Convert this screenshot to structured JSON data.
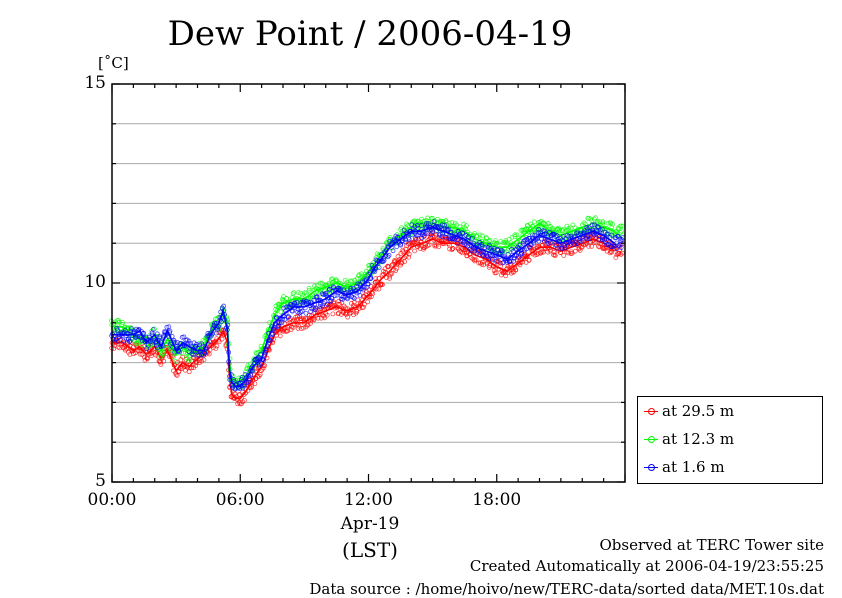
{
  "chart_data": {
    "type": "line",
    "title": "Dew Point / 2006-04-19",
    "ylabel": "[˚C]",
    "xlabel_date": "Apr-19",
    "xlabel_tz": "(LST)",
    "ylim": [
      5,
      15
    ],
    "yticks": [
      "5",
      "10",
      "15"
    ],
    "xlim_hours": [
      0,
      24
    ],
    "xticks": [
      "00:00",
      "06:00",
      "12:00",
      "18:00"
    ],
    "grid": true,
    "legend_position": "right-bottom",
    "series": [
      {
        "name": "at 29.5 m",
        "color": "#ff0000",
        "hours": [
          0,
          0.5,
          1,
          1.3,
          1.6,
          2,
          2.3,
          2.6,
          3,
          3.3,
          3.6,
          4,
          4.3,
          4.6,
          5,
          5.2,
          5.4,
          5.5,
          5.6,
          5.8,
          6,
          6.3,
          6.6,
          7,
          7.3,
          7.6,
          8,
          8.5,
          9,
          9.5,
          10,
          10.5,
          11,
          11.5,
          12,
          12.3,
          12.6,
          13,
          13.5,
          14,
          14.5,
          15,
          15.5,
          16,
          16.5,
          17,
          17.5,
          18,
          18.5,
          19,
          19.5,
          20,
          20.5,
          21,
          21.5,
          22,
          22.5,
          23,
          23.5,
          24
        ],
        "values": [
          8.5,
          8.5,
          8.3,
          8.4,
          8.2,
          8.4,
          8.1,
          8.3,
          7.8,
          8.0,
          7.9,
          8.1,
          8.2,
          8.4,
          8.6,
          8.8,
          8.5,
          7.6,
          7.2,
          7.1,
          7.1,
          7.3,
          7.6,
          7.9,
          8.3,
          8.7,
          8.9,
          9.0,
          9.0,
          9.2,
          9.3,
          9.4,
          9.3,
          9.4,
          9.7,
          9.9,
          10.1,
          10.3,
          10.6,
          10.9,
          11.0,
          11.1,
          11.0,
          11.0,
          10.9,
          10.7,
          10.6,
          10.4,
          10.3,
          10.5,
          10.7,
          10.9,
          10.9,
          10.8,
          10.9,
          11.0,
          11.1,
          11.0,
          10.8,
          10.9
        ]
      },
      {
        "name": "at 12.3 m",
        "color": "#00ff00",
        "hours": [
          0,
          0.5,
          1,
          1.3,
          1.6,
          2,
          2.3,
          2.6,
          3,
          3.3,
          3.6,
          4,
          4.3,
          4.6,
          5,
          5.2,
          5.4,
          5.5,
          5.6,
          5.8,
          6,
          6.3,
          6.6,
          7,
          7.3,
          7.6,
          8,
          8.5,
          9,
          9.5,
          10,
          10.5,
          11,
          11.5,
          12,
          12.3,
          12.6,
          13,
          13.5,
          14,
          14.5,
          15,
          15.5,
          16,
          16.5,
          17,
          17.5,
          18,
          18.5,
          19,
          19.5,
          20,
          20.5,
          21,
          21.5,
          22,
          22.5,
          23,
          23.5,
          24
        ],
        "values": [
          8.9,
          8.9,
          8.7,
          8.6,
          8.5,
          8.7,
          8.3,
          8.6,
          8.2,
          8.4,
          8.2,
          8.3,
          8.4,
          8.8,
          9.0,
          9.3,
          9.0,
          8.0,
          7.6,
          7.5,
          7.5,
          7.7,
          8.0,
          8.3,
          8.8,
          9.2,
          9.5,
          9.6,
          9.6,
          9.8,
          9.9,
          10.0,
          9.9,
          10.0,
          10.3,
          10.5,
          10.7,
          11.0,
          11.2,
          11.4,
          11.5,
          11.5,
          11.4,
          11.4,
          11.3,
          11.1,
          11.0,
          10.9,
          10.9,
          11.1,
          11.3,
          11.5,
          11.3,
          11.2,
          11.3,
          11.4,
          11.5,
          11.4,
          11.3,
          11.3
        ]
      },
      {
        "name": "at 1.6 m",
        "color": "#0000ff",
        "hours": [
          0,
          0.5,
          1,
          1.3,
          1.6,
          2,
          2.3,
          2.6,
          3,
          3.3,
          3.6,
          4,
          4.3,
          4.6,
          5,
          5.2,
          5.4,
          5.5,
          5.6,
          5.8,
          6,
          6.3,
          6.6,
          7,
          7.3,
          7.6,
          8,
          8.5,
          9,
          9.5,
          10,
          10.5,
          11,
          11.5,
          12,
          12.3,
          12.6,
          13,
          13.5,
          14,
          14.5,
          15,
          15.5,
          16,
          16.5,
          17,
          17.5,
          18,
          18.5,
          19,
          19.5,
          20,
          20.5,
          21,
          21.5,
          22,
          22.5,
          23,
          23.5,
          24
        ],
        "values": [
          8.7,
          8.7,
          8.7,
          8.8,
          8.5,
          8.7,
          8.4,
          8.8,
          8.3,
          8.5,
          8.4,
          8.3,
          8.3,
          8.7,
          9.0,
          9.3,
          8.8,
          7.8,
          7.5,
          7.4,
          7.4,
          7.6,
          7.9,
          8.1,
          8.6,
          9.0,
          9.2,
          9.4,
          9.4,
          9.5,
          9.6,
          9.8,
          9.7,
          9.8,
          10.1,
          10.4,
          10.6,
          10.9,
          11.1,
          11.3,
          11.3,
          11.4,
          11.3,
          11.2,
          11.1,
          10.9,
          10.8,
          10.7,
          10.6,
          10.8,
          11.0,
          11.2,
          11.1,
          11.0,
          11.1,
          11.2,
          11.3,
          11.2,
          11.0,
          11.1
        ]
      }
    ]
  },
  "footer": {
    "site": "Observed at TERC Tower site",
    "created": "Created Automatically at 2006-04-19/23:55:25",
    "source": "Data source : /home/hoivo/new/TERC-data/sorted  data/MET.10s.dat"
  }
}
